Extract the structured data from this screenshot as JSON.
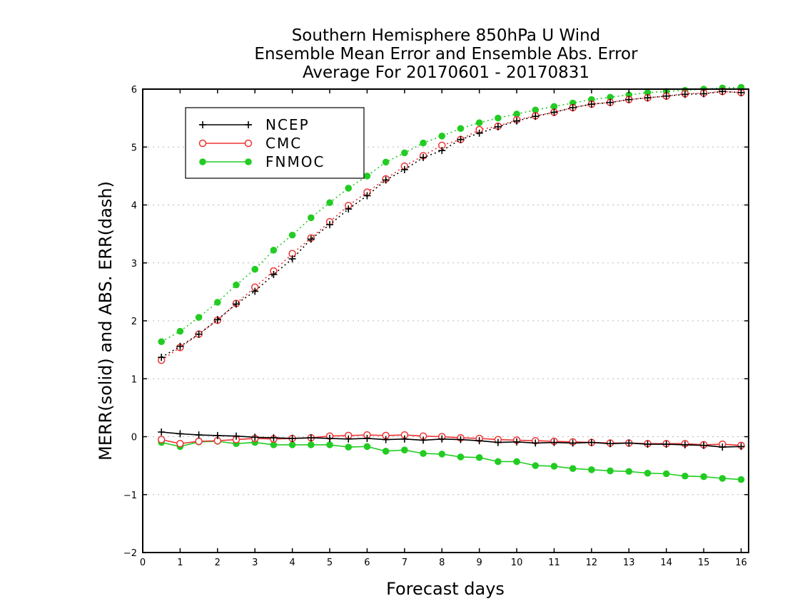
{
  "titles": {
    "line1": "Southern Hemisphere 850hPa U Wind",
    "line2": "Ensemble Mean Error and Ensemble Abs. Error",
    "line3": "Average For 20170601 - 20170831"
  },
  "chart_data": {
    "type": "line",
    "title": "Southern Hemisphere 850hPa U Wind / Ensemble Mean Error and Ensemble Abs. Error / Average For 20170601 - 20170831",
    "xlabel": "Forecast days",
    "ylabel": "MERR(solid) and ABS. ERR(dash)",
    "xlim": [
      0,
      16.2
    ],
    "ylim": [
      -2,
      6
    ],
    "xticks": [
      0,
      1,
      2,
      3,
      4,
      5,
      6,
      7,
      8,
      9,
      10,
      11,
      12,
      13,
      14,
      15,
      16
    ],
    "yticks": [
      -2,
      -1,
      0,
      1,
      2,
      3,
      4,
      5,
      6
    ],
    "grid": "horizontal dotted",
    "legend_position": "top-left",
    "x": [
      0.5,
      1,
      1.5,
      2,
      2.5,
      3,
      3.5,
      4,
      4.5,
      5,
      5.5,
      6,
      6.5,
      7,
      7.5,
      8,
      8.5,
      9,
      9.5,
      10,
      10.5,
      11,
      11.5,
      12,
      12.5,
      13,
      13.5,
      14,
      14.5,
      15,
      15.5,
      16
    ],
    "series": [
      {
        "name": "NCEP",
        "color": "#000000",
        "marker": "plus",
        "merr": [
          0.08,
          0.05,
          0.03,
          0.02,
          0.01,
          -0.01,
          -0.02,
          -0.03,
          -0.02,
          -0.03,
          -0.04,
          -0.03,
          -0.05,
          -0.04,
          -0.06,
          -0.04,
          -0.05,
          -0.07,
          -0.1,
          -0.09,
          -0.11,
          -0.1,
          -0.11,
          -0.1,
          -0.12,
          -0.11,
          -0.13,
          -0.13,
          -0.14,
          -0.15,
          -0.18,
          -0.17
        ],
        "abs_err": [
          1.37,
          1.56,
          1.77,
          2.02,
          2.29,
          2.51,
          2.8,
          3.07,
          3.41,
          3.66,
          3.93,
          4.16,
          4.43,
          4.61,
          4.82,
          4.94,
          5.13,
          5.24,
          5.35,
          5.45,
          5.53,
          5.6,
          5.68,
          5.74,
          5.77,
          5.82,
          5.85,
          5.88,
          5.91,
          5.92,
          5.96,
          5.94
        ]
      },
      {
        "name": "CMC",
        "color": "#ee3333",
        "marker": "open-circle",
        "merr": [
          -0.05,
          -0.12,
          -0.08,
          -0.07,
          -0.05,
          -0.03,
          -0.04,
          -0.03,
          -0.02,
          0.01,
          0.02,
          0.03,
          0.02,
          0.03,
          0.01,
          0.0,
          -0.02,
          -0.03,
          -0.05,
          -0.06,
          -0.07,
          -0.08,
          -0.09,
          -0.1,
          -0.11,
          -0.11,
          -0.12,
          -0.12,
          -0.12,
          -0.14,
          -0.13,
          -0.15
        ],
        "abs_err": [
          1.32,
          1.54,
          1.77,
          2.01,
          2.3,
          2.58,
          2.86,
          3.16,
          3.43,
          3.71,
          3.99,
          4.22,
          4.45,
          4.67,
          4.85,
          5.03,
          5.13,
          5.3,
          5.36,
          5.47,
          5.54,
          5.6,
          5.68,
          5.74,
          5.77,
          5.82,
          5.85,
          5.88,
          5.92,
          5.93,
          5.96,
          5.94
        ]
      },
      {
        "name": "FNMOC",
        "color": "#22cc22",
        "marker": "filled-circle",
        "merr": [
          -0.1,
          -0.17,
          -0.09,
          -0.08,
          -0.12,
          -0.1,
          -0.14,
          -0.14,
          -0.14,
          -0.14,
          -0.18,
          -0.17,
          -0.25,
          -0.23,
          -0.29,
          -0.3,
          -0.35,
          -0.36,
          -0.43,
          -0.43,
          -0.5,
          -0.51,
          -0.55,
          -0.57,
          -0.59,
          -0.6,
          -0.63,
          -0.64,
          -0.68,
          -0.69,
          -0.72,
          -0.74
        ],
        "abs_err": [
          1.64,
          1.82,
          2.06,
          2.32,
          2.62,
          2.89,
          3.22,
          3.48,
          3.78,
          4.04,
          4.29,
          4.5,
          4.74,
          4.9,
          5.07,
          5.19,
          5.32,
          5.42,
          5.5,
          5.57,
          5.64,
          5.7,
          5.76,
          5.82,
          5.86,
          5.9,
          5.94,
          5.96,
          5.98,
          6.0,
          6.02,
          6.03
        ]
      }
    ]
  }
}
